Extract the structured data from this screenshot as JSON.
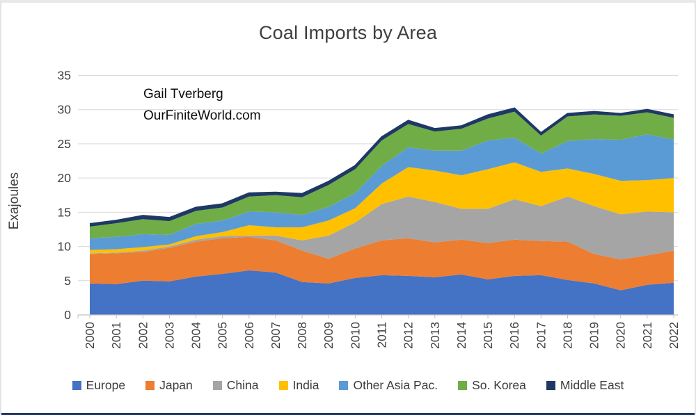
{
  "page": {
    "title": "Coal Imports by Area",
    "annotation_line1": "Gail Tverberg",
    "annotation_line2": "OurFiniteWorld.com",
    "y_axis_title": "Exajoules"
  },
  "chart_data": {
    "type": "area",
    "stacked": true,
    "title": "Coal Imports by Area",
    "xlabel": "",
    "ylabel": "Exajoules",
    "ylim": [
      0,
      35
    ],
    "yticks": [
      0,
      5,
      10,
      15,
      20,
      25,
      30,
      35
    ],
    "grid": true,
    "legend_position": "bottom",
    "annotation": "Gail Tverberg OurFiniteWorld.com",
    "categories": [
      "2000",
      "2001",
      "2002",
      "2003",
      "2004",
      "2005",
      "2006",
      "2007",
      "2008",
      "2009",
      "2010",
      "2011",
      "2012",
      "2013",
      "2014",
      "2015",
      "2016",
      "2017",
      "2018",
      "2019",
      "2020",
      "2021",
      "2022"
    ],
    "series": [
      {
        "name": "Europe",
        "color": "#4472C4",
        "values": [
          4.6,
          4.5,
          5.0,
          4.9,
          5.6,
          6.0,
          6.5,
          6.2,
          4.8,
          4.6,
          5.4,
          5.8,
          5.7,
          5.5,
          5.9,
          5.2,
          5.7,
          5.8,
          5.1,
          4.6,
          3.6,
          4.4,
          4.7
        ]
      },
      {
        "name": "Japan",
        "color": "#ED7D31",
        "values": [
          4.3,
          4.5,
          4.2,
          4.9,
          5.1,
          5.2,
          4.9,
          4.7,
          4.6,
          3.6,
          4.3,
          5.1,
          5.5,
          5.1,
          5.1,
          5.3,
          5.3,
          5.0,
          5.6,
          4.3,
          4.5,
          4.3,
          4.7
        ]
      },
      {
        "name": "China",
        "color": "#A5A5A5",
        "values": [
          0.1,
          0.1,
          0.2,
          0.2,
          0.3,
          0.3,
          0.2,
          0.7,
          1.5,
          3.4,
          3.8,
          5.3,
          6.1,
          5.9,
          4.5,
          5.0,
          5.9,
          5.1,
          6.6,
          7.0,
          6.6,
          6.4,
          5.6
        ]
      },
      {
        "name": "India",
        "color": "#FFC000",
        "values": [
          0.5,
          0.5,
          0.5,
          0.3,
          0.5,
          0.6,
          1.5,
          1.2,
          1.9,
          2.2,
          2.1,
          3.0,
          4.3,
          4.6,
          4.9,
          5.8,
          5.4,
          5.0,
          4.1,
          4.7,
          4.9,
          4.6,
          5.0
        ]
      },
      {
        "name": "Other Asia Pac.",
        "color": "#5B9BD5",
        "values": [
          1.7,
          1.8,
          1.9,
          1.4,
          1.8,
          1.7,
          2.0,
          2.2,
          1.8,
          2.0,
          2.2,
          2.6,
          2.9,
          2.9,
          3.6,
          4.2,
          3.6,
          2.7,
          4.0,
          5.1,
          6.0,
          6.7,
          5.6
        ]
      },
      {
        "name": "So. Korea",
        "color": "#70AD47",
        "values": [
          1.7,
          2.0,
          2.2,
          2.0,
          1.9,
          1.9,
          2.2,
          2.5,
          2.6,
          3.2,
          3.5,
          3.7,
          3.4,
          2.8,
          3.2,
          3.2,
          3.8,
          2.6,
          3.6,
          3.6,
          3.5,
          3.2,
          3.2
        ]
      },
      {
        "name": "Middle East",
        "color": "#1F3864",
        "values": [
          0.4,
          0.4,
          0.5,
          0.5,
          0.5,
          0.5,
          0.5,
          0.4,
          0.5,
          0.5,
          0.5,
          0.5,
          0.5,
          0.4,
          0.4,
          0.5,
          0.5,
          0.4,
          0.4,
          0.4,
          0.3,
          0.4,
          0.4
        ]
      }
    ],
    "colors": {
      "gridline": "#d9d9d9",
      "axis_line": "#bfbfbf",
      "tick_label": "#3f3f3f",
      "top_edge_line": "#1f3864"
    }
  }
}
